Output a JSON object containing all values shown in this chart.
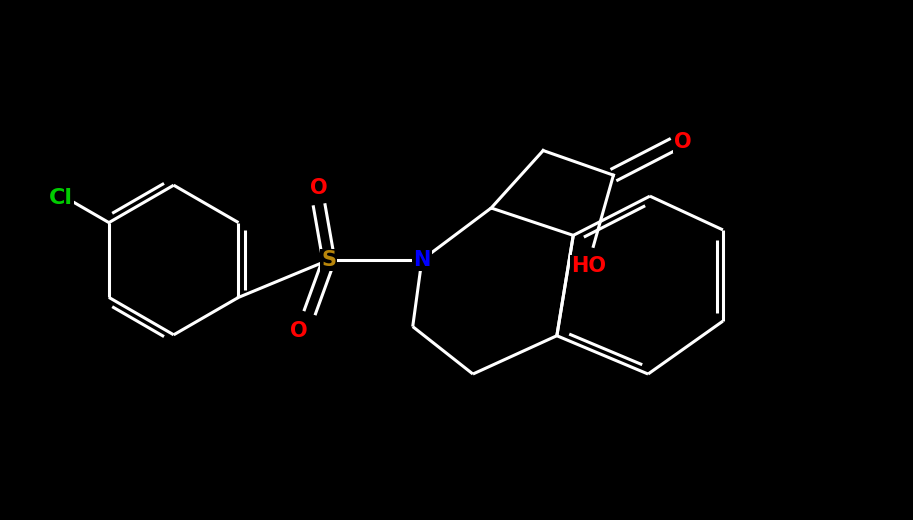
{
  "background_color": "#000000",
  "atom_colors": {
    "N": "#0000ff",
    "O": "#ff0000",
    "S": "#b8860b",
    "Cl": "#00cc00"
  },
  "bond_color": "#ffffff",
  "bond_width": 2.2,
  "font_size": 15,
  "figsize": [
    9.13,
    5.2
  ],
  "dpi": 100,
  "xlim": [
    0,
    10
  ],
  "ylim": [
    0,
    5.7
  ]
}
